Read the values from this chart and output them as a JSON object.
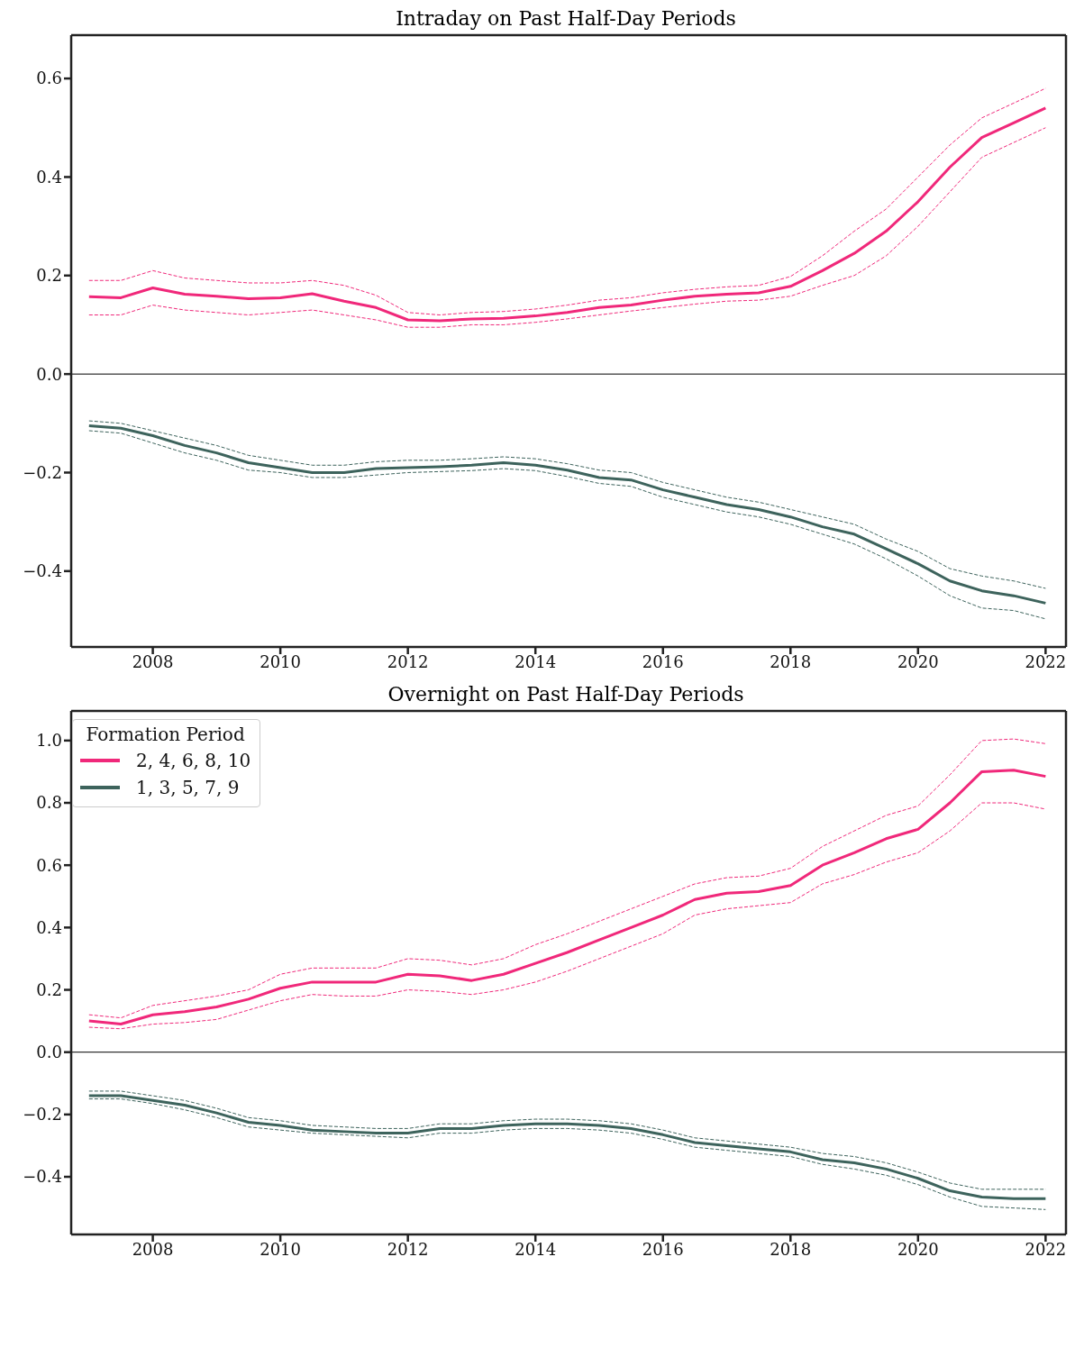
{
  "chart_data": [
    {
      "type": "line",
      "title": "Intraday on Past Half-Day Periods",
      "x": [
        2007,
        2007.5,
        2008,
        2008.5,
        2009,
        2009.5,
        2010,
        2010.5,
        2011,
        2011.5,
        2012,
        2012.5,
        2013,
        2013.5,
        2014,
        2014.5,
        2015,
        2015.5,
        2016,
        2016.5,
        2017,
        2017.5,
        2018,
        2018.5,
        2019,
        2019.5,
        2020,
        2020.5,
        2021,
        2021.5,
        2022
      ],
      "series": [
        {
          "color": "#f0287a",
          "line_style": "solid",
          "values": [
            0.157,
            0.155,
            0.175,
            0.162,
            0.158,
            0.153,
            0.155,
            0.163,
            0.148,
            0.135,
            0.11,
            0.108,
            0.112,
            0.113,
            0.118,
            0.125,
            0.135,
            0.14,
            0.15,
            0.158,
            0.162,
            0.165,
            0.178,
            0.21,
            0.245,
            0.29,
            0.35,
            0.42,
            0.48,
            0.51,
            0.54
          ]
        },
        {
          "color": "#f0287a",
          "line_style": "dashed",
          "values": [
            0.12,
            0.12,
            0.14,
            0.13,
            0.125,
            0.12,
            0.125,
            0.13,
            0.12,
            0.11,
            0.095,
            0.095,
            0.1,
            0.1,
            0.105,
            0.112,
            0.12,
            0.128,
            0.135,
            0.142,
            0.148,
            0.15,
            0.158,
            0.18,
            0.2,
            0.24,
            0.3,
            0.37,
            0.44,
            0.47,
            0.5
          ]
        },
        {
          "color": "#f0287a",
          "line_style": "dashed",
          "values": [
            0.19,
            0.19,
            0.21,
            0.195,
            0.19,
            0.185,
            0.185,
            0.19,
            0.18,
            0.16,
            0.125,
            0.12,
            0.125,
            0.127,
            0.132,
            0.14,
            0.15,
            0.155,
            0.165,
            0.172,
            0.177,
            0.18,
            0.198,
            0.24,
            0.29,
            0.335,
            0.4,
            0.465,
            0.52,
            0.55,
            0.58
          ]
        },
        {
          "color": "#3d635c",
          "line_style": "solid",
          "values": [
            -0.105,
            -0.11,
            -0.125,
            -0.145,
            -0.16,
            -0.18,
            -0.19,
            -0.2,
            -0.2,
            -0.192,
            -0.19,
            -0.188,
            -0.185,
            -0.18,
            -0.185,
            -0.195,
            -0.21,
            -0.215,
            -0.235,
            -0.25,
            -0.265,
            -0.275,
            -0.29,
            -0.31,
            -0.325,
            -0.355,
            -0.385,
            -0.42,
            -0.44,
            -0.45,
            -0.465
          ]
        },
        {
          "color": "#3d635c",
          "line_style": "dashed",
          "values": [
            -0.115,
            -0.12,
            -0.14,
            -0.16,
            -0.175,
            -0.195,
            -0.2,
            -0.21,
            -0.21,
            -0.205,
            -0.2,
            -0.198,
            -0.196,
            -0.192,
            -0.196,
            -0.208,
            -0.222,
            -0.228,
            -0.25,
            -0.265,
            -0.28,
            -0.29,
            -0.305,
            -0.325,
            -0.345,
            -0.375,
            -0.41,
            -0.45,
            -0.475,
            -0.48,
            -0.497
          ]
        },
        {
          "color": "#3d635c",
          "line_style": "dashed",
          "values": [
            -0.095,
            -0.1,
            -0.115,
            -0.13,
            -0.145,
            -0.165,
            -0.175,
            -0.185,
            -0.185,
            -0.178,
            -0.175,
            -0.175,
            -0.172,
            -0.168,
            -0.172,
            -0.182,
            -0.195,
            -0.2,
            -0.22,
            -0.235,
            -0.25,
            -0.26,
            -0.275,
            -0.29,
            -0.305,
            -0.335,
            -0.36,
            -0.395,
            -0.41,
            -0.42,
            -0.435
          ]
        }
      ],
      "xlim": [
        2006.72,
        2022.32
      ],
      "xticks": [
        2008,
        2010,
        2012,
        2014,
        2016,
        2018,
        2020,
        2022
      ],
      "ylim": [
        -0.554,
        0.688
      ],
      "yticks": [
        {
          "value": -0.4,
          "label": "−0.4"
        },
        {
          "value": -0.2,
          "label": "−0.2"
        },
        {
          "value": 0,
          "label": "0.0"
        },
        {
          "value": 0.2,
          "label": "0.2"
        },
        {
          "value": 0.4,
          "label": "0.4"
        },
        {
          "value": 0.6,
          "label": "0.6"
        }
      ],
      "ref_lines": [
        {
          "axis": "y",
          "value": 0,
          "color": "#000000"
        }
      ],
      "legend": false,
      "grid": false
    },
    {
      "type": "line",
      "title": "Overnight on Past Half-Day Periods",
      "legend_title": "Formation Period",
      "x": [
        2007,
        2007.5,
        2008,
        2008.5,
        2009,
        2009.5,
        2010,
        2010.5,
        2011,
        2011.5,
        2012,
        2012.5,
        2013,
        2013.5,
        2014,
        2014.5,
        2015,
        2015.5,
        2016,
        2016.5,
        2017,
        2017.5,
        2018,
        2018.5,
        2019,
        2019.5,
        2020,
        2020.5,
        2021,
        2021.5,
        2022
      ],
      "series": [
        {
          "name": "2, 4, 6, 8, 10",
          "color": "#f0287a",
          "line_style": "solid",
          "values": [
            0.1,
            0.09,
            0.12,
            0.13,
            0.145,
            0.17,
            0.205,
            0.225,
            0.225,
            0.225,
            0.25,
            0.245,
            0.23,
            0.25,
            0.285,
            0.32,
            0.36,
            0.4,
            0.44,
            0.49,
            0.51,
            0.515,
            0.535,
            0.6,
            0.64,
            0.685,
            0.715,
            0.8,
            0.9,
            0.905,
            0.885
          ]
        },
        {
          "color": "#f0287a",
          "line_style": "dashed",
          "values": [
            0.08,
            0.075,
            0.09,
            0.095,
            0.105,
            0.135,
            0.165,
            0.185,
            0.18,
            0.18,
            0.2,
            0.195,
            0.185,
            0.2,
            0.225,
            0.26,
            0.3,
            0.34,
            0.38,
            0.44,
            0.46,
            0.47,
            0.48,
            0.54,
            0.57,
            0.61,
            0.64,
            0.71,
            0.8,
            0.8,
            0.78
          ]
        },
        {
          "color": "#f0287a",
          "line_style": "dashed",
          "values": [
            0.12,
            0.11,
            0.15,
            0.165,
            0.18,
            0.2,
            0.25,
            0.27,
            0.27,
            0.27,
            0.3,
            0.295,
            0.28,
            0.3,
            0.345,
            0.38,
            0.42,
            0.46,
            0.5,
            0.54,
            0.56,
            0.565,
            0.59,
            0.66,
            0.71,
            0.76,
            0.79,
            0.89,
            1.0,
            1.005,
            0.99
          ]
        },
        {
          "name": "1, 3, 5, 7, 9",
          "color": "#3d635c",
          "line_style": "solid",
          "values": [
            -0.14,
            -0.14,
            -0.155,
            -0.17,
            -0.195,
            -0.225,
            -0.235,
            -0.25,
            -0.255,
            -0.26,
            -0.26,
            -0.245,
            -0.245,
            -0.235,
            -0.23,
            -0.23,
            -0.235,
            -0.245,
            -0.265,
            -0.29,
            -0.3,
            -0.31,
            -0.32,
            -0.345,
            -0.355,
            -0.375,
            -0.405,
            -0.445,
            -0.465,
            -0.47,
            -0.47
          ]
        },
        {
          "color": "#3d635c",
          "line_style": "dashed",
          "values": [
            -0.15,
            -0.15,
            -0.165,
            -0.185,
            -0.21,
            -0.24,
            -0.25,
            -0.26,
            -0.265,
            -0.27,
            -0.275,
            -0.26,
            -0.26,
            -0.25,
            -0.245,
            -0.245,
            -0.25,
            -0.26,
            -0.28,
            -0.305,
            -0.315,
            -0.325,
            -0.335,
            -0.36,
            -0.375,
            -0.395,
            -0.425,
            -0.465,
            -0.495,
            -0.5,
            -0.505
          ]
        },
        {
          "color": "#3d635c",
          "line_style": "dashed",
          "values": [
            -0.125,
            -0.125,
            -0.14,
            -0.155,
            -0.18,
            -0.21,
            -0.22,
            -0.235,
            -0.24,
            -0.245,
            -0.245,
            -0.23,
            -0.23,
            -0.22,
            -0.215,
            -0.215,
            -0.22,
            -0.23,
            -0.25,
            -0.275,
            -0.285,
            -0.295,
            -0.305,
            -0.325,
            -0.335,
            -0.355,
            -0.385,
            -0.42,
            -0.44,
            -0.44,
            -0.44
          ]
        }
      ],
      "xlim": [
        2006.72,
        2022.32
      ],
      "xticks": [
        2008,
        2010,
        2012,
        2014,
        2016,
        2018,
        2020,
        2022
      ],
      "ylim": [
        -0.585,
        1.095
      ],
      "yticks": [
        {
          "value": -0.4,
          "label": "−0.4"
        },
        {
          "value": -0.2,
          "label": "−0.2"
        },
        {
          "value": 0,
          "label": "0.0"
        },
        {
          "value": 0.2,
          "label": "0.2"
        },
        {
          "value": 0.4,
          "label": "0.4"
        },
        {
          "value": 0.6,
          "label": "0.6"
        },
        {
          "value": 0.8,
          "label": "0.8"
        },
        {
          "value": 1.0,
          "label": "1.0"
        }
      ],
      "ref_lines": [
        {
          "axis": "y",
          "value": 0,
          "color": "#000000"
        }
      ],
      "legend": "top left",
      "grid": false
    }
  ]
}
